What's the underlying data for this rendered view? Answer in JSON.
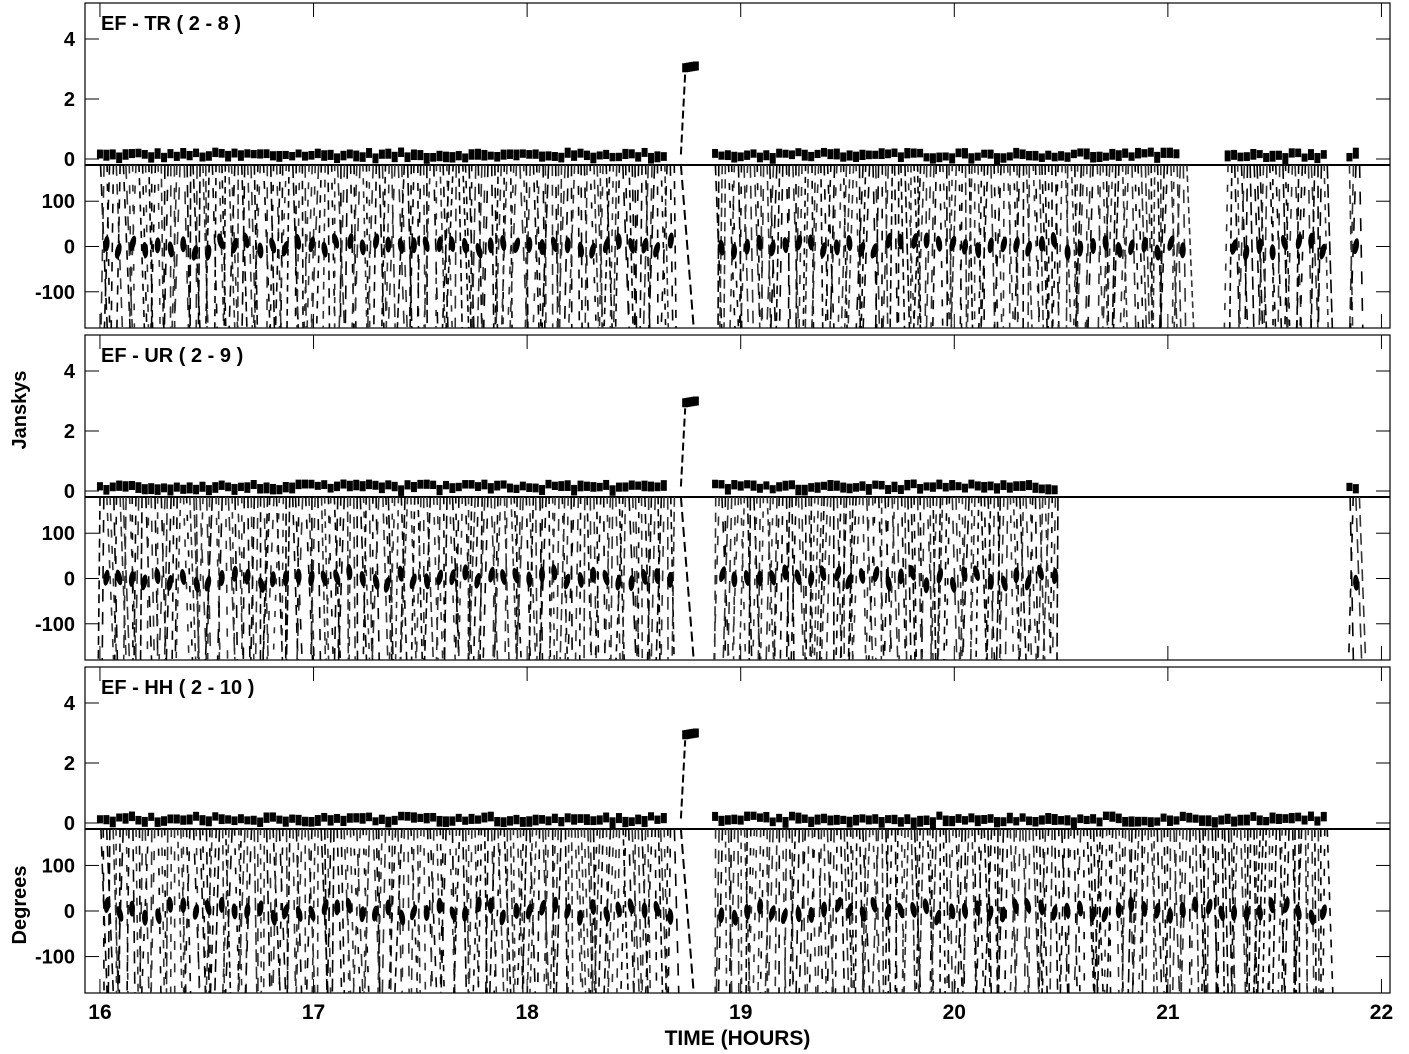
{
  "chart_data": {
    "type": "scatter",
    "subtype": "VLBI visibility amplitude and phase vs time",
    "xlabel": "TIME (HOURS)",
    "xlim": [
      15.93,
      22.04
    ],
    "xticks": [
      16,
      17,
      18,
      19,
      20,
      21,
      22
    ],
    "xtick_labels": [
      "16",
      "17",
      "18",
      "19",
      "20",
      "21",
      "22"
    ],
    "ylabel_amplitude": "Janskys",
    "ylabel_phase": "Degrees",
    "grid": false,
    "panels": [
      {
        "label": "EF - TR ( 2 - 8 )",
        "amp_ylim": [
          -0.2,
          5.2
        ],
        "amp_ticks": [
          0,
          2,
          4
        ],
        "amp_tick_labels": [
          "0",
          "2",
          "4"
        ],
        "phase_ylim": [
          -180,
          180
        ],
        "phase_ticks": [
          -100,
          0,
          100
        ],
        "phase_tick_labels": [
          "-100",
          "0",
          "100"
        ],
        "segments": [
          [
            16.0,
            18.65
          ],
          [
            18.88,
            21.05
          ],
          [
            21.28,
            21.75
          ],
          [
            21.85,
            21.9
          ]
        ],
        "baseline_amp": 0.15,
        "flare": {
          "t_start": 18.72,
          "t_end": 18.8,
          "amp": 3.0
        }
      },
      {
        "label": "EF - UR ( 2 - 9 )",
        "amp_ylim": [
          -0.2,
          5.2
        ],
        "amp_ticks": [
          0,
          2,
          4
        ],
        "amp_tick_labels": [
          "0",
          "2",
          "4"
        ],
        "phase_ylim": [
          -180,
          180
        ],
        "phase_ticks": [
          -100,
          0,
          100
        ],
        "phase_tick_labels": [
          "-100",
          "0",
          "100"
        ],
        "segments": [
          [
            16.0,
            18.65
          ],
          [
            18.88,
            20.5
          ],
          [
            21.85,
            21.9
          ]
        ],
        "baseline_amp": 0.15,
        "flare": {
          "t_start": 18.72,
          "t_end": 18.8,
          "amp": 2.9
        }
      },
      {
        "label": "EF - HH ( 2 - 10 )",
        "amp_ylim": [
          -0.2,
          5.2
        ],
        "amp_ticks": [
          0,
          2,
          4
        ],
        "amp_tick_labels": [
          "0",
          "2",
          "4"
        ],
        "phase_ylim": [
          -180,
          180
        ],
        "phase_ticks": [
          -100,
          0,
          100
        ],
        "phase_tick_labels": [
          "-100",
          "0",
          "100"
        ],
        "segments": [
          [
            16.0,
            18.65
          ],
          [
            18.88,
            21.75
          ]
        ],
        "baseline_amp": 0.15,
        "flare": {
          "t_start": 18.72,
          "t_end": 18.8,
          "amp": 2.9
        }
      }
    ]
  }
}
